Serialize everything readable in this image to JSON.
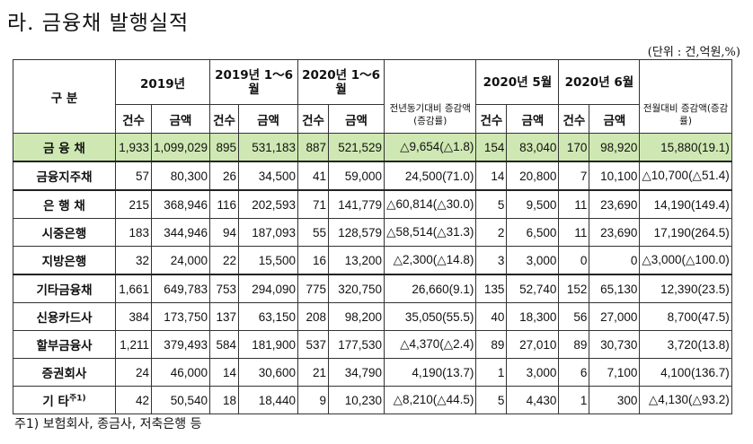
{
  "title": "라. 금융채 발행실적",
  "unit": "(단위 : 건,억원,%)",
  "headers": {
    "category": "구 분",
    "p2019": "2019년",
    "p2019h1": "2019년 1～6월",
    "p2020h1": "2020년 1～6월",
    "yoy": "전년동기대비 증감액(증감률)",
    "m2020_5": "2020년 5월",
    "m2020_6": "2020년 6월",
    "mom": "전월대비 증감액(증감률)",
    "count": "건수",
    "amount": "금액"
  },
  "rows": [
    {
      "label": "금 융 채",
      "c2019": "1,933",
      "a2019": "1,099,029",
      "c19h": "895",
      "a19h": "531,183",
      "c20h": "887",
      "a20h": "521,529",
      "yoy": "△9,654(△1.8)",
      "c5": "154",
      "a5": "83,040",
      "c6": "170",
      "a6": "98,920",
      "mom": "15,880(19.1)"
    },
    {
      "label": "금융지주채",
      "c2019": "57",
      "a2019": "80,300",
      "c19h": "26",
      "a19h": "34,500",
      "c20h": "41",
      "a20h": "59,000",
      "yoy": "24,500(71.0)",
      "c5": "14",
      "a5": "20,800",
      "c6": "7",
      "a6": "10,100",
      "mom": "△10,700(△51.4)"
    },
    {
      "label": "은 행 채",
      "c2019": "215",
      "a2019": "368,946",
      "c19h": "116",
      "a19h": "202,593",
      "c20h": "71",
      "a20h": "141,779",
      "yoy": "△60,814(△30.0)",
      "c5": "5",
      "a5": "9,500",
      "c6": "11",
      "a6": "23,690",
      "mom": "14,190(149.4)"
    },
    {
      "label": "시중은행",
      "c2019": "183",
      "a2019": "344,946",
      "c19h": "94",
      "a19h": "187,093",
      "c20h": "55",
      "a20h": "128,579",
      "yoy": "△58,514(△31.3)",
      "c5": "2",
      "a5": "6,500",
      "c6": "11",
      "a6": "23,690",
      "mom": "17,190(264.5)"
    },
    {
      "label": "지방은행",
      "c2019": "32",
      "a2019": "24,000",
      "c19h": "22",
      "a19h": "15,500",
      "c20h": "16",
      "a20h": "13,200",
      "yoy": "△2,300(△14.8)",
      "c5": "3",
      "a5": "3,000",
      "c6": "0",
      "a6": "0",
      "mom": "△3,000(△100.0)"
    },
    {
      "label": "기타금융채",
      "c2019": "1,661",
      "a2019": "649,783",
      "c19h": "753",
      "a19h": "294,090",
      "c20h": "775",
      "a20h": "320,750",
      "yoy": "26,660(9.1)",
      "c5": "135",
      "a5": "52,740",
      "c6": "152",
      "a6": "65,130",
      "mom": "12,390(23.5)"
    },
    {
      "label": "신용카드사",
      "c2019": "384",
      "a2019": "173,750",
      "c19h": "137",
      "a19h": "63,150",
      "c20h": "208",
      "a20h": "98,200",
      "yoy": "35,050(55.5)",
      "c5": "40",
      "a5": "18,300",
      "c6": "56",
      "a6": "27,000",
      "mom": "8,700(47.5)"
    },
    {
      "label": "할부금융사",
      "c2019": "1,211",
      "a2019": "379,493",
      "c19h": "584",
      "a19h": "181,900",
      "c20h": "537",
      "a20h": "177,530",
      "yoy": "△4,370(△2.4)",
      "c5": "89",
      "a5": "27,010",
      "c6": "89",
      "a6": "30,730",
      "mom": "3,720(13.8)"
    },
    {
      "label": "증권회사",
      "c2019": "24",
      "a2019": "46,000",
      "c19h": "14",
      "a19h": "30,600",
      "c20h": "21",
      "a20h": "34,790",
      "yoy": "4,190(13.7)",
      "c5": "1",
      "a5": "3,000",
      "c6": "6",
      "a6": "7,100",
      "mom": "4,100(136.7)"
    },
    {
      "label": "기 타",
      "c2019": "42",
      "a2019": "50,540",
      "c19h": "18",
      "a19h": "18,440",
      "c20h": "9",
      "a20h": "10,230",
      "yoy": "△8,210(△44.5)",
      "c5": "5",
      "a5": "4,430",
      "c6": "1",
      "a6": "300",
      "mom": "△4,130(△93.2)"
    }
  ],
  "etc_note_mark": "주1)",
  "footnote": "주1) 보험회사, 종금사, 저축은행 등",
  "colors": {
    "total_row_bg": "#cfe8b3"
  }
}
